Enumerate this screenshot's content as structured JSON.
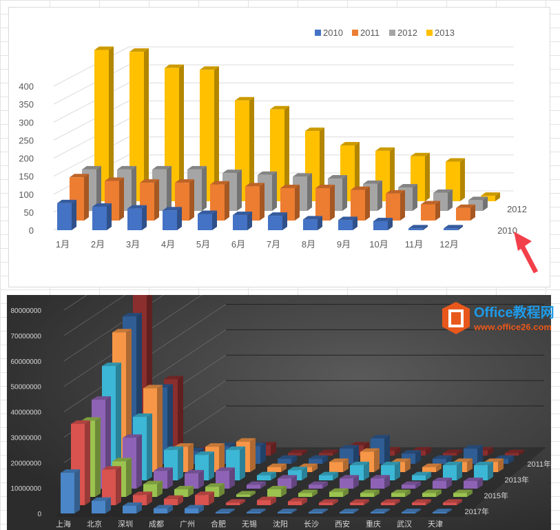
{
  "chart_data": [
    {
      "type": "bar",
      "subtype": "3d-column",
      "categories": [
        "1月",
        "2月",
        "3月",
        "4月",
        "5月",
        "6月",
        "7月",
        "8月",
        "9月",
        "10月",
        "11月",
        "12月"
      ],
      "yticks": [
        "0",
        "50",
        "100",
        "150",
        "200",
        "250",
        "300",
        "350",
        "400"
      ],
      "ylim": [
        0,
        450
      ],
      "grid": true,
      "legend": "top",
      "depth_labels": [
        "2010",
        "2012"
      ],
      "series": [
        {
          "name": "2010",
          "color": "#4472C4",
          "values": [
            75,
            65,
            60,
            55,
            45,
            42,
            40,
            30,
            28,
            25,
            5,
            5
          ]
        },
        {
          "name": "2011",
          "color": "#ED7D31",
          "values": [
            120,
            110,
            105,
            105,
            100,
            95,
            90,
            90,
            85,
            75,
            45,
            35
          ]
        },
        {
          "name": "2012",
          "color": "#A5A5A5",
          "values": [
            115,
            115,
            115,
            115,
            105,
            100,
            95,
            90,
            75,
            65,
            50,
            30
          ]
        },
        {
          "name": "2013",
          "color": "#FFC000",
          "values": [
            420,
            415,
            370,
            365,
            280,
            255,
            195,
            155,
            140,
            125,
            110,
            15
          ]
        }
      ]
    },
    {
      "type": "bar",
      "subtype": "3d-column",
      "categories": [
        "上海",
        "北京",
        "深圳",
        "成都",
        "广州",
        "合肥",
        "无锡",
        "沈阳",
        "长沙",
        "西安",
        "重庆",
        "武汉",
        "天津"
      ],
      "yticks": [
        "0",
        "10000000",
        "20000000",
        "30000000",
        "40000000",
        "50000000",
        "60000000",
        "70000000",
        "80000000"
      ],
      "ylim": [
        0,
        80000000
      ],
      "grid": true,
      "depth_labels": [
        "2011年",
        "2013年",
        "2015年",
        "2017年"
      ],
      "series": [
        {
          "color": "#4A86C8",
          "values": [
            16,
            5,
            3,
            2,
            2,
            0.5,
            0.5,
            0.5,
            0.5,
            0.5,
            0.5,
            0.5,
            0.5
          ]
        },
        {
          "color": "#D9534F",
          "values": [
            32,
            14,
            4,
            2.5,
            4,
            1,
            2,
            1.5,
            1,
            1,
            1,
            1,
            1
          ]
        },
        {
          "color": "#9BC34F",
          "values": [
            30,
            14,
            5,
            3,
            4,
            1,
            3,
            1.5,
            2,
            1.5,
            1.5,
            1.5,
            1.5
          ]
        },
        {
          "color": "#8E63B5",
          "values": [
            35,
            20,
            7,
            6,
            7,
            1.5,
            4,
            1.5,
            4,
            4,
            1.5,
            3,
            3
          ]
        },
        {
          "color": "#3CB7D6",
          "values": [
            45,
            25,
            12,
            10,
            12,
            2,
            4,
            2,
            6,
            6,
            2,
            6,
            6
          ]
        },
        {
          "color": "#F79646",
          "values": [
            55,
            33,
            10,
            10,
            12,
            2,
            2,
            4,
            8,
            4,
            2,
            4,
            4
          ]
        },
        {
          "color": "#2F5D94",
          "values": [
            58,
            30,
            5,
            7,
            7,
            2,
            2,
            6,
            10,
            4,
            2,
            6,
            2
          ]
        },
        {
          "color": "#8B2E2E",
          "values": [
            90,
            30,
            2,
            3,
            4,
            1,
            1,
            4,
            2,
            2,
            1,
            2,
            1
          ]
        }
      ]
    }
  ],
  "watermark": {
    "title": "Office教程网",
    "url": "www.office26.com"
  }
}
